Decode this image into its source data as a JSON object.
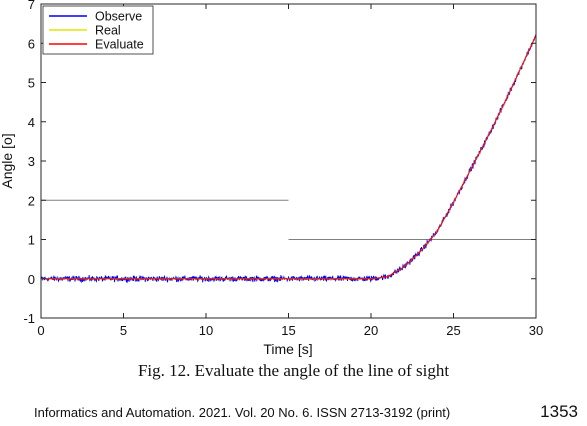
{
  "chart_data": {
    "type": "line",
    "title": "",
    "xlabel": "Time [s]",
    "ylabel": "Angle [o]",
    "xlim": [
      0,
      30
    ],
    "ylim": [
      -1,
      7
    ],
    "xticks": [
      0,
      5,
      10,
      15,
      20,
      25,
      30
    ],
    "yticks": [
      -1,
      0,
      1,
      2,
      3,
      4,
      5,
      6,
      7
    ],
    "grid": false,
    "legend_position": "top-left",
    "series": [
      {
        "name": "Observe",
        "color": "#0000ee",
        "style": "noisy",
        "noise": 0.05,
        "x": [
          0,
          5,
          10,
          15,
          20,
          21,
          22,
          23,
          24,
          25,
          26,
          27,
          28,
          29,
          30
        ],
        "y": [
          0,
          0,
          0,
          0,
          0,
          0.05,
          0.3,
          0.7,
          1.2,
          1.95,
          2.75,
          3.55,
          4.4,
          5.3,
          6.2
        ]
      },
      {
        "name": "Real",
        "color": "#e6e600",
        "style": "smooth",
        "x": [
          0,
          5,
          10,
          15,
          20,
          21,
          22,
          23,
          24,
          25,
          26,
          27,
          28,
          29,
          30
        ],
        "y": [
          0,
          0,
          0,
          0,
          0,
          0.05,
          0.3,
          0.7,
          1.2,
          1.95,
          2.75,
          3.55,
          4.4,
          5.3,
          6.2
        ]
      },
      {
        "name": "Evaluate",
        "color": "#ff0000",
        "style": "smooth",
        "x": [
          0,
          5,
          10,
          15,
          20,
          21,
          22,
          23,
          24,
          25,
          26,
          27,
          28,
          29,
          30
        ],
        "y": [
          0,
          0,
          0,
          0,
          0,
          0.05,
          0.3,
          0.7,
          1.2,
          1.95,
          2.75,
          3.55,
          4.4,
          5.3,
          6.2
        ]
      }
    ],
    "reference_lines": [
      {
        "color": "#808080",
        "x": [
          0,
          15
        ],
        "y": [
          2,
          2
        ]
      },
      {
        "color": "#808080",
        "x": [
          15,
          30
        ],
        "y": [
          1,
          1
        ]
      }
    ]
  },
  "caption": "Fig. 12. Evaluate the angle of the line of sight",
  "footer": "Informatics and Automation. 2021. Vol. 20 No. 6. ISSN 2713-3192 (print)",
  "page_number": "1353"
}
